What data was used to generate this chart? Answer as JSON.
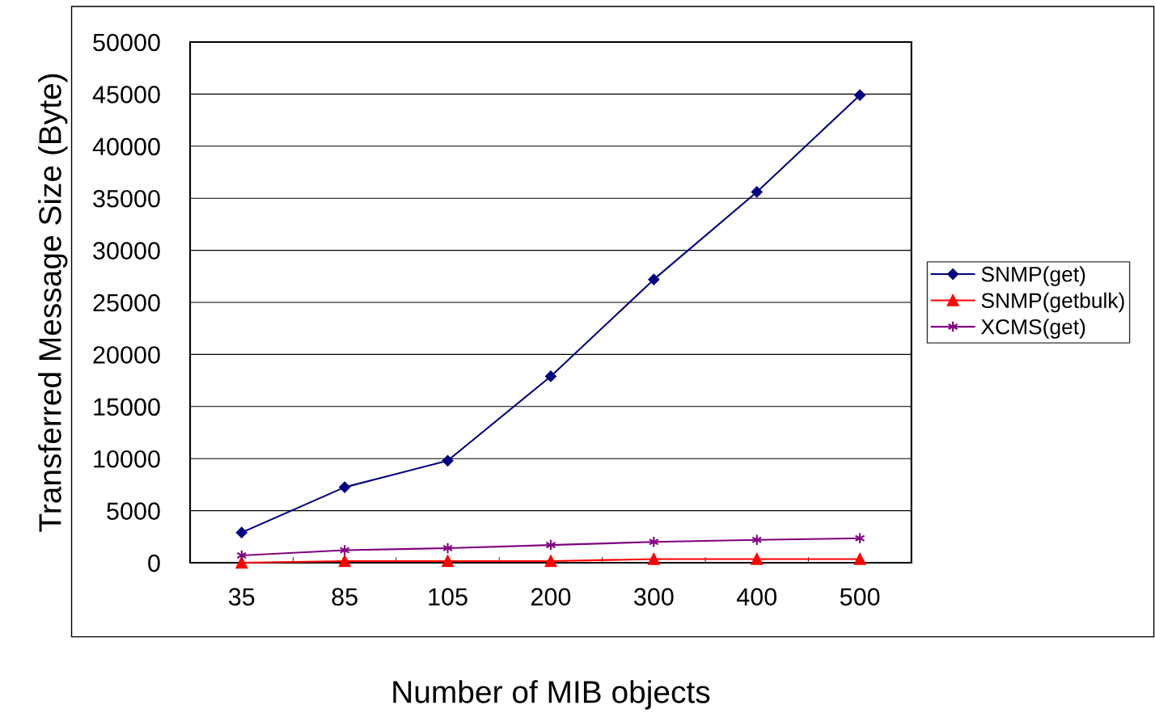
{
  "chart_data": {
    "type": "line",
    "xlabel": "Number of MIB objects",
    "ylabel": "Transferred Message Size (Byte)",
    "categories": [
      "35",
      "85",
      "105",
      "200",
      "300",
      "400",
      "500"
    ],
    "series": [
      {
        "name": "SNMP(get)",
        "color": "#000080",
        "marker": "diamond",
        "values": [
          2900,
          7250,
          9800,
          17900,
          27200,
          35600,
          44900
        ]
      },
      {
        "name": "SNMP(getbulk)",
        "color": "#ff0000",
        "marker": "triangle",
        "values": [
          0,
          150,
          150,
          150,
          350,
          350,
          350
        ]
      },
      {
        "name": "XCMS(get)",
        "color": "#800080",
        "marker": "cross",
        "values": [
          700,
          1200,
          1400,
          1700,
          2000,
          2200,
          2350
        ]
      }
    ],
    "ylim": [
      0,
      50000
    ],
    "yticks": [
      0,
      5000,
      10000,
      15000,
      20000,
      25000,
      30000,
      35000,
      40000,
      45000,
      50000
    ],
    "grid": "y",
    "legend": "right",
    "line_style": "solid"
  }
}
